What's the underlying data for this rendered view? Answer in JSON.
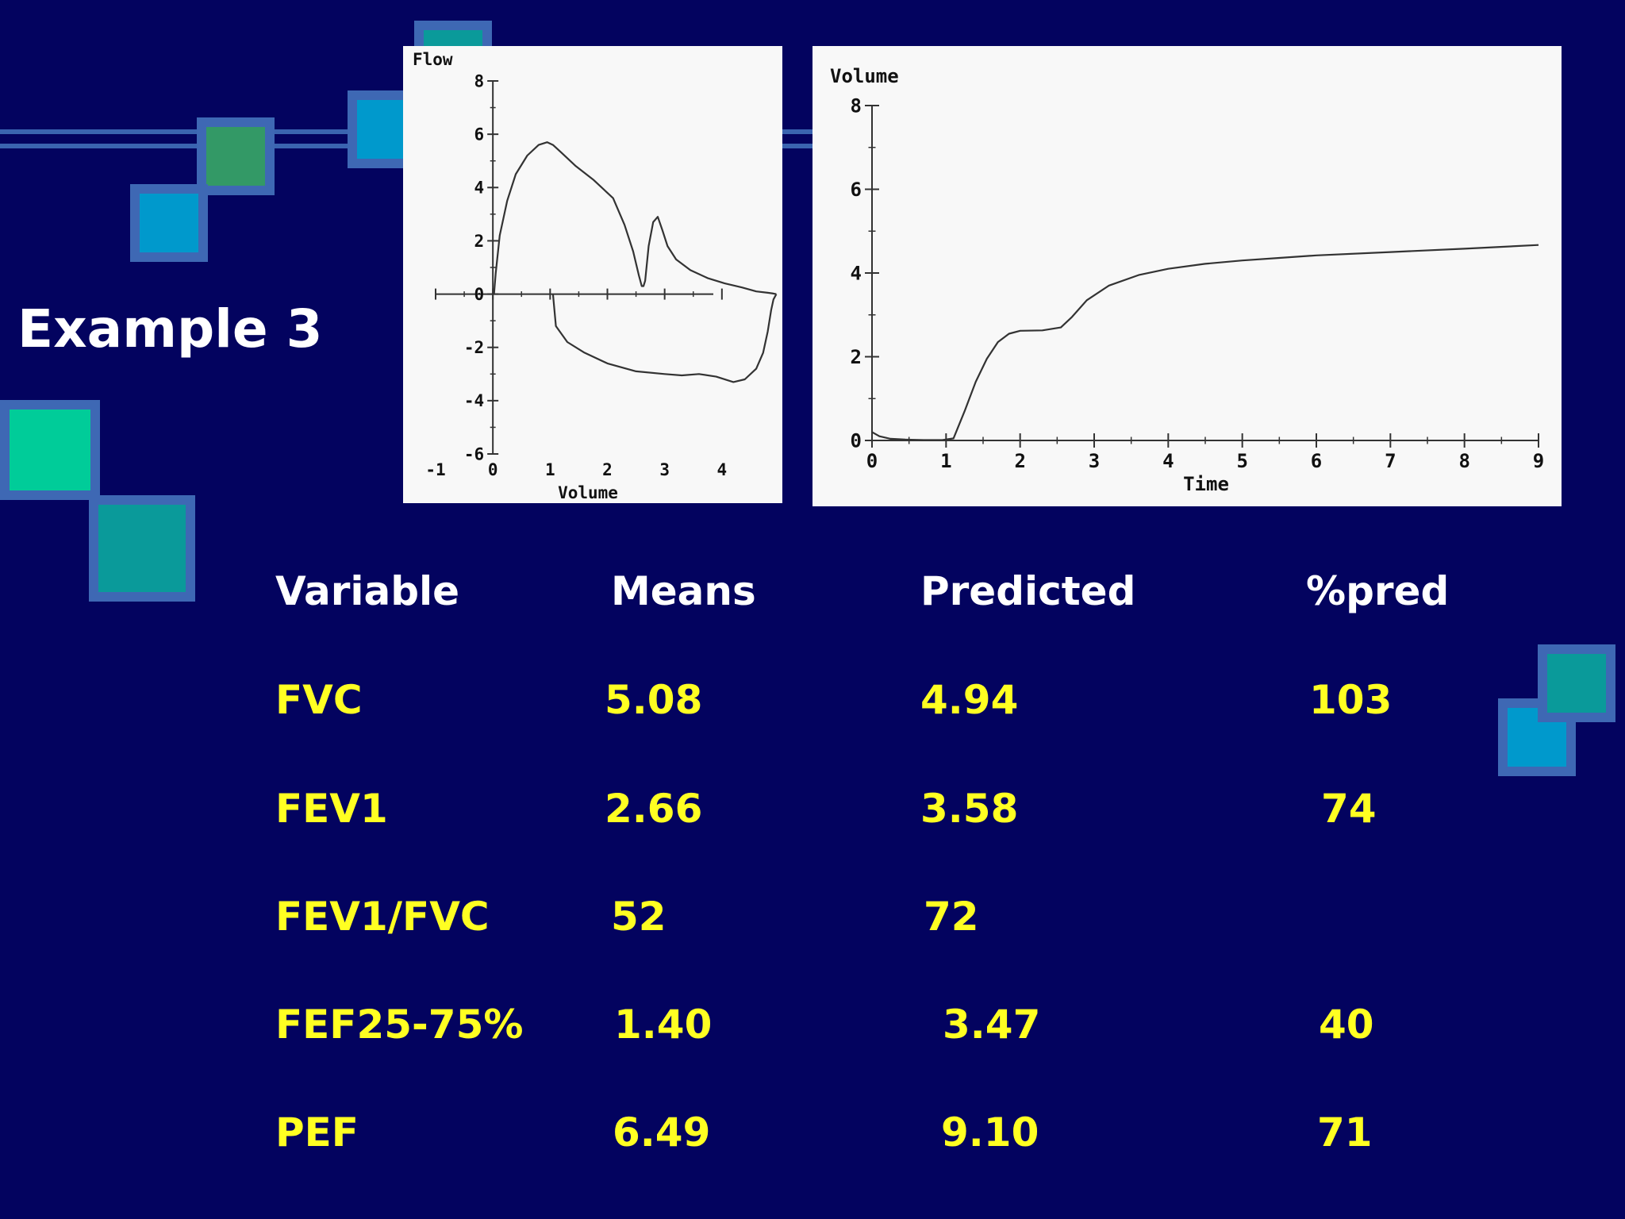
{
  "slide_title": "Example 3",
  "chart_data": [
    {
      "type": "line",
      "xlabel": "Volume",
      "ylabel": "Flow",
      "xlim": [
        -1,
        5
      ],
      "ylim": [
        -6,
        8
      ],
      "x_ticks": [
        -1,
        0,
        1,
        2,
        3,
        4
      ],
      "y_ticks": [
        8,
        6,
        4,
        2,
        0,
        -2,
        -4,
        -6
      ],
      "grid": false,
      "series": [
        {
          "x": [
            0.02,
            0.05,
            0.12,
            0.25,
            0.4,
            0.6,
            0.8,
            0.95,
            1.05,
            1.2,
            1.45,
            1.75,
            2.1,
            2.3,
            2.45,
            2.55,
            2.6,
            2.63,
            2.66,
            2.72,
            2.8,
            2.88,
            2.96,
            3.05,
            3.2,
            3.45,
            3.75,
            4.05,
            4.35,
            4.6,
            4.8,
            4.9,
            4.95
          ],
          "y": [
            0,
            0.8,
            2.2,
            3.5,
            4.5,
            5.2,
            5.6,
            5.7,
            5.6,
            5.3,
            4.8,
            4.3,
            3.6,
            2.6,
            1.6,
            0.7,
            0.3,
            0.3,
            0.5,
            1.8,
            2.7,
            2.9,
            2.4,
            1.8,
            1.3,
            0.9,
            0.6,
            0.4,
            0.25,
            0.1,
            0.05,
            0.02,
            0
          ]
        },
        {
          "x": [
            1.05,
            1.1,
            1.3,
            1.6,
            2.0,
            2.5,
            3.0,
            3.3,
            3.6,
            3.9,
            4.2,
            4.4,
            4.6,
            4.72,
            4.8,
            4.86,
            4.9,
            4.95
          ],
          "y": [
            0,
            -1.2,
            -1.8,
            -2.2,
            -2.6,
            -2.9,
            -3.0,
            -3.05,
            -3.0,
            -3.1,
            -3.3,
            -3.2,
            -2.8,
            -2.2,
            -1.4,
            -0.6,
            -0.2,
            0
          ]
        }
      ]
    },
    {
      "type": "line",
      "xlabel": "Time",
      "ylabel": "Volume",
      "xlim": [
        0,
        9
      ],
      "ylim": [
        0,
        8
      ],
      "x_ticks": [
        0,
        1,
        2,
        3,
        4,
        5,
        6,
        7,
        8,
        9
      ],
      "y_ticks": [
        0,
        2,
        4,
        6,
        8
      ],
      "grid": false,
      "series": [
        {
          "x": [
            0,
            0.1,
            0.25,
            0.45,
            0.7,
            0.95,
            1.1,
            1.25,
            1.4,
            1.55,
            1.7,
            1.85,
            2.0,
            2.3,
            2.55,
            2.7,
            2.9,
            3.2,
            3.6,
            4.0,
            4.5,
            5.0,
            5.5,
            6.0,
            7.0,
            8.0,
            9.0
          ],
          "y": [
            0.2,
            0.1,
            0.04,
            0.02,
            0.01,
            0.01,
            0.05,
            0.7,
            1.4,
            1.95,
            2.35,
            2.55,
            2.62,
            2.63,
            2.7,
            2.95,
            3.35,
            3.7,
            3.95,
            4.1,
            4.22,
            4.3,
            4.36,
            4.42,
            4.5,
            4.58,
            4.67
          ]
        }
      ]
    }
  ],
  "table": {
    "headers": [
      "Variable",
      "Means",
      "Predicted",
      "%pred"
    ],
    "rows": [
      [
        "FVC",
        "5.08",
        "4.94",
        "103"
      ],
      [
        "FEV1",
        "2.66",
        "3.58",
        "74"
      ],
      [
        "FEV1/FVC",
        "52",
        "72",
        ""
      ],
      [
        "FEF25-75%",
        "1.40",
        "3.47",
        "40"
      ],
      [
        "PEF",
        "6.49",
        "9.10",
        "71"
      ]
    ]
  },
  "colors": {
    "background": "#03035f",
    "header_text": "#ffffff",
    "value_text": "#ffff22",
    "plot_line": "#333333"
  }
}
